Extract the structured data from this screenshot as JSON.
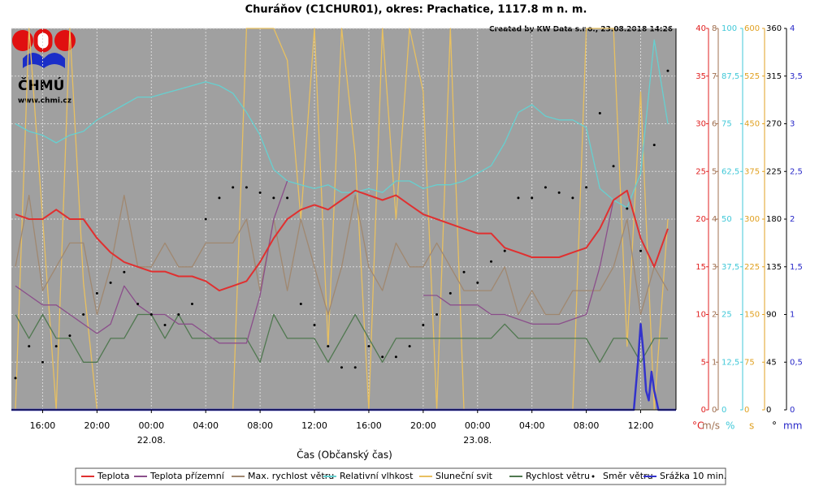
{
  "chart_data": {
    "type": "line",
    "title": "Churáňov (C1CHUR01), okres: Prachatice, 1117.8 m n. m.",
    "credit": "Created by KW Data s.r.o., 23.08.2018 14:26",
    "logo_text": "ČHMÚ",
    "logo_url": "www.chmi.cz",
    "xlabel": "Čas (Občanský čas)",
    "xlim": [
      13.7,
      62.6
    ],
    "xticks": [
      {
        "value": 16,
        "label": "16:00"
      },
      {
        "value": 20,
        "label": "20:00"
      },
      {
        "value": 24,
        "label": "00:00",
        "date": "22.08."
      },
      {
        "value": 28,
        "label": "04:00"
      },
      {
        "value": 32,
        "label": "08:00"
      },
      {
        "value": 36,
        "label": "12:00"
      },
      {
        "value": 40,
        "label": "16:00"
      },
      {
        "value": 44,
        "label": "20:00"
      },
      {
        "value": 48,
        "label": "00:00",
        "date": "23.08."
      },
      {
        "value": 52,
        "label": "04:00"
      },
      {
        "value": 56,
        "label": "08:00"
      },
      {
        "value": 60,
        "label": "12:00"
      }
    ],
    "grid": true,
    "axes": [
      {
        "unit": "°C",
        "color": "#e02020",
        "lim": [
          0,
          40
        ],
        "ticks": [
          0,
          5,
          10,
          15,
          20,
          25,
          30,
          35,
          40
        ]
      },
      {
        "unit": "m/s",
        "color": "#a07050",
        "lim": [
          0,
          8
        ],
        "ticks": [
          0,
          1,
          2,
          3,
          4,
          5,
          6,
          7,
          8
        ]
      },
      {
        "unit": "%",
        "color": "#40c8d8",
        "lim": [
          0,
          100
        ],
        "ticks": [
          0,
          {
            "value": 12.5,
            "label": "12,5"
          },
          25,
          {
            "value": 37.5,
            "label": "37,5"
          },
          50,
          {
            "value": 62.5,
            "label": "62,5"
          },
          75,
          {
            "value": 87.5,
            "label": "87,5"
          },
          100
        ]
      },
      {
        "unit": "s",
        "color": "#e0a020",
        "lim": [
          0,
          600
        ],
        "ticks": [
          0,
          75,
          150,
          225,
          300,
          375,
          450,
          525,
          600
        ]
      },
      {
        "unit": "°",
        "color": "#000000",
        "lim": [
          0,
          360
        ],
        "ticks": [
          0,
          45,
          90,
          135,
          180,
          225,
          270,
          315,
          360
        ]
      },
      {
        "unit": "mm",
        "color": "#2828c8",
        "lim": [
          0,
          4
        ],
        "ticks": [
          0,
          {
            "value": 0.5,
            "label": "0,5"
          },
          1,
          {
            "value": 1.5,
            "label": "1,5"
          },
          2,
          {
            "value": 2.5,
            "label": "2,5"
          },
          3,
          {
            "value": 3.5,
            "label": "3,5"
          },
          4
        ]
      }
    ],
    "x": [
      14,
      15,
      16,
      17,
      18,
      19,
      20,
      21,
      22,
      23,
      24,
      25,
      26,
      27,
      28,
      29,
      30,
      31,
      32,
      33,
      34,
      35,
      36,
      37,
      38,
      39,
      40,
      41,
      42,
      43,
      44,
      45,
      46,
      47,
      48,
      49,
      50,
      51,
      52,
      53,
      54,
      55,
      56,
      57,
      58,
      59,
      60,
      61,
      62
    ],
    "series": [
      {
        "name": "Sluneční svit",
        "color": "#e8c060",
        "axis": 3,
        "style": "line",
        "values": [
          0,
          600,
          300,
          0,
          600,
          200,
          0,
          0,
          0,
          0,
          0,
          0,
          0,
          0,
          0,
          0,
          0,
          600,
          600,
          600,
          550,
          300,
          600,
          100,
          600,
          400,
          0,
          600,
          300,
          600,
          500,
          0,
          600,
          0,
          0,
          0,
          0,
          0,
          0,
          0,
          0,
          0,
          600,
          600,
          600,
          100,
          500,
          0,
          300
        ]
      },
      {
        "name": "Max. rychlost větru",
        "color": "#a08870",
        "axis": 1,
        "style": "line",
        "values": [
          3,
          4.5,
          2.5,
          3,
          3.5,
          3.5,
          2,
          3,
          4.5,
          3,
          3,
          3.5,
          3,
          3,
          3.5,
          3.5,
          3.5,
          4,
          2.5,
          4,
          2.5,
          4,
          3,
          2,
          3,
          4.5,
          3,
          2.5,
          3.5,
          3,
          3,
          3.5,
          3,
          2.5,
          2.5,
          2.5,
          3,
          2,
          2.5,
          2,
          2,
          2.5,
          2.5,
          2.5,
          3,
          4,
          2,
          3,
          2.5
        ]
      },
      {
        "name": "Rychlost větru",
        "color": "#507850",
        "axis": 1,
        "style": "line",
        "values": [
          2,
          1.5,
          2,
          1.5,
          1.5,
          1,
          1,
          1.5,
          1.5,
          2,
          2,
          1.5,
          2,
          1.5,
          1.5,
          1.5,
          1.5,
          1.5,
          1,
          2,
          1.5,
          1.5,
          1.5,
          1,
          1.5,
          2,
          1.5,
          1,
          1.5,
          1.5,
          1.5,
          1.5,
          1.5,
          1.5,
          1.5,
          1.5,
          1.8,
          1.5,
          1.5,
          1.5,
          1.5,
          1.5,
          1.5,
          1,
          1.5,
          1.5,
          1,
          1.5,
          1.5
        ]
      },
      {
        "name": "Relativní vlhkost",
        "color": "#66d0d0",
        "axis": 2,
        "style": "line",
        "values": [
          75,
          73,
          72,
          70,
          72,
          73,
          76,
          78,
          80,
          82,
          82,
          83,
          84,
          85,
          86,
          85,
          83,
          78,
          72,
          63,
          60,
          59,
          58,
          59,
          57,
          57,
          58,
          57,
          60,
          60,
          58,
          59,
          59,
          60,
          62,
          64,
          70,
          78,
          80,
          77,
          76,
          76,
          74,
          58,
          55,
          53,
          62,
          97,
          75
        ]
      },
      {
        "name": "Teplota přízemní",
        "color": "#8b4f8b",
        "axis": 0,
        "style": "line",
        "values": [
          13,
          12,
          11,
          11,
          10,
          9,
          8,
          9,
          13,
          11,
          10,
          10,
          9,
          9,
          8,
          7,
          7,
          7,
          12,
          20,
          24,
          null,
          null,
          null,
          null,
          null,
          null,
          null,
          null,
          null,
          12,
          12,
          11,
          11,
          11,
          10,
          10,
          9.5,
          9,
          9,
          9,
          9.5,
          10,
          15,
          22,
          null,
          null,
          null,
          null
        ]
      },
      {
        "name": "Teplota",
        "color": "#e03030",
        "axis": 0,
        "style": "line",
        "width": 2,
        "values": [
          20.5,
          20,
          20,
          21,
          20,
          20,
          18,
          16.5,
          15.5,
          15,
          14.5,
          14.5,
          14,
          14,
          13.5,
          12.5,
          13,
          13.5,
          15.5,
          18,
          20,
          21,
          21.5,
          21,
          22,
          23,
          22.5,
          22,
          22.5,
          21.5,
          20.5,
          20,
          19.5,
          19,
          18.5,
          18.5,
          17,
          16.5,
          16,
          16,
          16,
          16.5,
          17,
          19,
          22,
          23,
          18,
          15,
          19
        ]
      },
      {
        "name": "Směr větru",
        "color": "#000000",
        "axis": 4,
        "style": "dots",
        "values": [
          30,
          60,
          45,
          60,
          70,
          90,
          110,
          120,
          130,
          100,
          90,
          80,
          90,
          100,
          180,
          200,
          210,
          210,
          205,
          200,
          200,
          100,
          80,
          60,
          40,
          40,
          60,
          50,
          50,
          60,
          80,
          90,
          110,
          130,
          120,
          140,
          150,
          200,
          200,
          210,
          205,
          200,
          210,
          280,
          230,
          190,
          150,
          250,
          320
        ]
      },
      {
        "name": "Srážka 10 min.",
        "color": "#3333cc",
        "axis": 5,
        "style": "line",
        "width": 2.5,
        "x": [
          13.7,
          59.5,
          59.8,
          60,
          60.2,
          60.4,
          60.6,
          60.8,
          61,
          61.3,
          62.6
        ],
        "values": [
          0,
          0,
          0.5,
          0.9,
          0.6,
          0.2,
          0.1,
          0.4,
          0.2,
          0,
          0
        ]
      }
    ],
    "legend_order": [
      5,
      4,
      1,
      3,
      0,
      2,
      6,
      7
    ]
  }
}
